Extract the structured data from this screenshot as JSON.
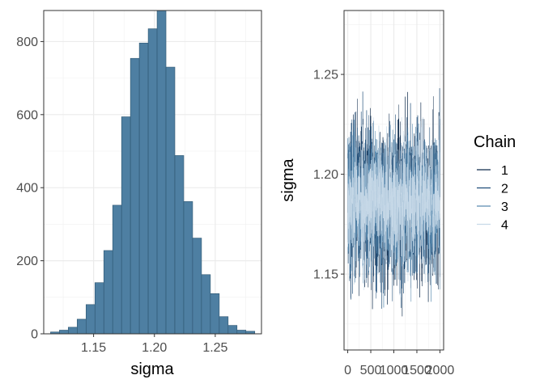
{
  "chart_data": [
    {
      "type": "bar",
      "subtype": "histogram",
      "xlabel": "sigma",
      "ylabel": "",
      "xlim": [
        1.109,
        1.288
      ],
      "ylim": [
        0,
        885
      ],
      "xticks": [
        "1.15",
        "1.20",
        "1.25"
      ],
      "yticks": [
        "0",
        "200",
        "400",
        "600",
        "800"
      ],
      "bin_width": 0.0073,
      "bin_starts": [
        1.1146,
        1.1219,
        1.1292,
        1.1365,
        1.1438,
        1.1511,
        1.1584,
        1.1657,
        1.173,
        1.1803,
        1.1876,
        1.1949,
        1.2022,
        1.2095,
        1.2168,
        1.2241,
        1.2314,
        1.2387,
        1.246,
        1.2533,
        1.2606,
        1.2679,
        1.2752
      ],
      "values": [
        5,
        10,
        18,
        40,
        80,
        140,
        228,
        352,
        594,
        754,
        796,
        835,
        885,
        730,
        488,
        362,
        262,
        162,
        110,
        47,
        23,
        10,
        7
      ],
      "bar_color": "#4e7fa2",
      "bar_border": "#2d5570",
      "grid": true
    },
    {
      "type": "line",
      "subtype": "trace",
      "xlabel": "",
      "ylabel": "sigma",
      "xlim": [
        -80,
        2080
      ],
      "ylim": [
        1.112,
        1.282
      ],
      "xticks": [
        "0",
        "500",
        "1000",
        "1500",
        "2000"
      ],
      "yticks": [
        "1.15",
        "1.20",
        "1.25"
      ],
      "legend_title": "Chain",
      "series": [
        {
          "name": "1",
          "color": "#0f2b4c",
          "center": 1.186,
          "sd": 0.019,
          "seed": 11
        },
        {
          "name": "2",
          "color": "#1f4d78",
          "center": 1.186,
          "sd": 0.018,
          "seed": 23
        },
        {
          "name": "3",
          "color": "#5b8bb0",
          "center": 1.186,
          "sd": 0.017,
          "seed": 37
        },
        {
          "name": "4",
          "color": "#c7d9e8",
          "center": 1.186,
          "sd": 0.0155,
          "seed": 53
        }
      ],
      "grid": true
    }
  ]
}
